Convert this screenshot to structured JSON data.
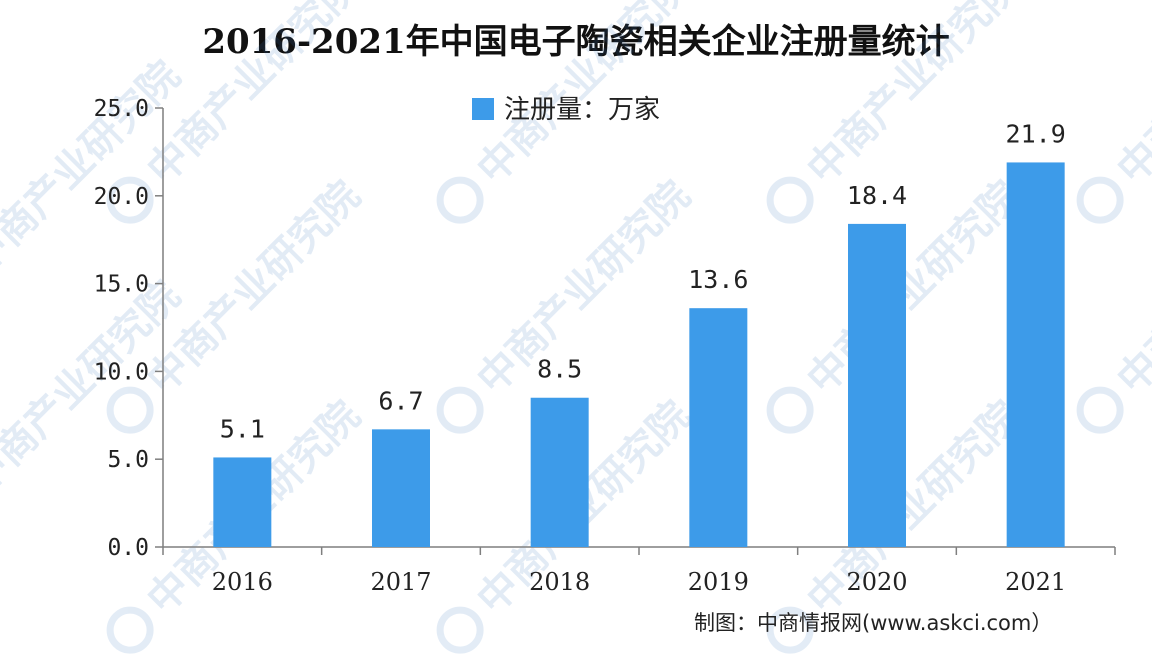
{
  "watermark": {
    "text": "中商产业研究院"
  },
  "source_note": "制图：中商情报网(www.askci.com）",
  "colors": {
    "bar": "#3d9be9",
    "axis": "#7f7f7f",
    "watermark": "#3a78c0"
  },
  "chart_data": {
    "type": "bar",
    "title": "2016-2021年中国电子陶瓷相关企业注册量统计",
    "categories": [
      "2016",
      "2017",
      "2018",
      "2019",
      "2020",
      "2021"
    ],
    "series": [
      {
        "name": "注册量：万家",
        "values": [
          5.1,
          6.7,
          8.5,
          13.6,
          18.4,
          21.9
        ]
      }
    ],
    "data_labels": [
      "5.1",
      "6.7",
      "8.5",
      "13.6",
      "18.4",
      "21.9"
    ],
    "yticks": [
      "0.0",
      "5.0",
      "10.0",
      "15.0",
      "20.0",
      "25.0"
    ],
    "ylim": [
      0,
      25
    ],
    "grid": false,
    "legend_position": "top-center"
  }
}
